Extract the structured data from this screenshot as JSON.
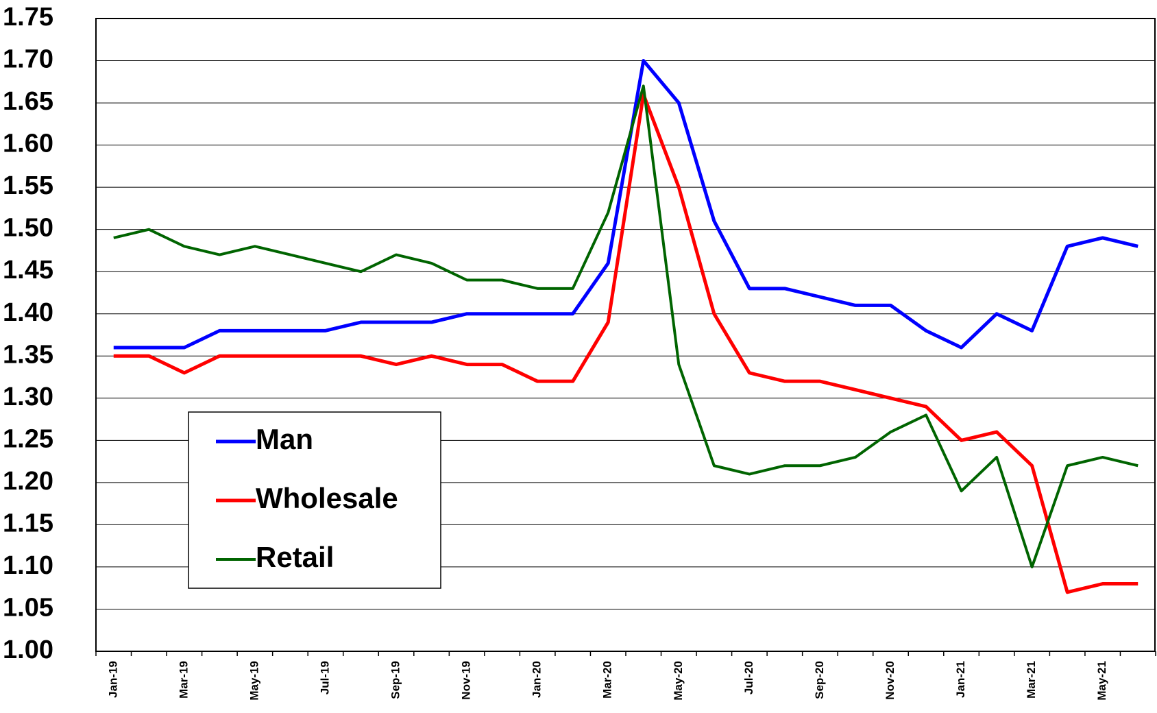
{
  "chart_data": {
    "type": "line",
    "categories": [
      "Jan-19",
      null,
      "Mar-19",
      null,
      "May-19",
      null,
      "Jul-19",
      null,
      "Sep-19",
      null,
      "Nov-19",
      null,
      "Jan-20",
      null,
      "Mar-20",
      null,
      "May-20",
      null,
      "Jul-20",
      null,
      "Sep-20",
      null,
      "Nov-20",
      null,
      "Jan-21",
      null,
      "Mar-21",
      null,
      "May-21",
      null
    ],
    "series": [
      {
        "name": "Man",
        "color": "#0000ff",
        "values": [
          1.36,
          1.36,
          1.36,
          1.38,
          1.38,
          1.38,
          1.38,
          1.39,
          1.39,
          1.39,
          1.4,
          1.4,
          1.4,
          1.4,
          1.46,
          1.7,
          1.65,
          1.51,
          1.43,
          1.43,
          1.42,
          1.41,
          1.41,
          1.38,
          1.36,
          1.4,
          1.38,
          1.48,
          1.49,
          1.48
        ]
      },
      {
        "name": "Wholesale",
        "color": "#ff0000",
        "values": [
          1.35,
          1.35,
          1.33,
          1.35,
          1.35,
          1.35,
          1.35,
          1.35,
          1.34,
          1.35,
          1.34,
          1.34,
          1.32,
          1.32,
          1.39,
          1.66,
          1.55,
          1.4,
          1.33,
          1.32,
          1.32,
          1.31,
          1.3,
          1.29,
          1.25,
          1.26,
          1.22,
          1.07,
          1.08,
          1.08
        ]
      },
      {
        "name": "Retail",
        "color": "#006400",
        "values": [
          1.49,
          1.5,
          1.48,
          1.47,
          1.48,
          1.47,
          1.46,
          1.45,
          1.47,
          1.46,
          1.44,
          1.44,
          1.43,
          1.43,
          1.52,
          1.67,
          1.34,
          1.22,
          1.21,
          1.22,
          1.22,
          1.23,
          1.26,
          1.28,
          1.19,
          1.23,
          1.1,
          1.22,
          1.23,
          1.22
        ]
      }
    ],
    "ylim": [
      1.0,
      1.75
    ],
    "yticks": [
      {
        "value": 1.0,
        "label": "1.00"
      },
      1.05,
      {
        "value": 1.1,
        "label": "1.10"
      },
      1.15,
      {
        "value": 1.2,
        "label": "1.20"
      },
      1.25,
      {
        "value": 1.3,
        "label": "1.30"
      },
      1.35,
      {
        "value": 1.4,
        "label": "1.40"
      },
      1.45,
      {
        "value": 1.5,
        "label": "1.50"
      },
      1.55,
      {
        "value": 1.6,
        "label": "1.60"
      },
      1.65,
      {
        "value": 1.7,
        "label": "1.70"
      },
      1.75
    ],
    "grid": true,
    "legend": "lower left"
  }
}
